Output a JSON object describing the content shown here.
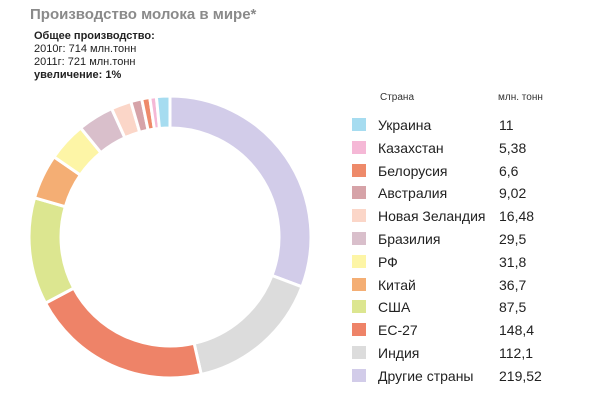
{
  "title": "Производство молока в мире*",
  "summary": {
    "heading": "Общее производство:",
    "line_2010": "2010г: 714 млн.тонн",
    "line_2011": "2011г: 721 млн.тонн",
    "increase": "увеличение: 1%"
  },
  "legend_header": {
    "country": "Страна",
    "unit": "млн. тонн"
  },
  "chart_data": {
    "type": "pie",
    "title": "Производство молока в мире*",
    "legend_placement": "right",
    "categories": [
      "Украина",
      "Казахстан",
      "Белорусия",
      "Австралия",
      "Новая Зеландия",
      "Бразилия",
      "РФ",
      "Китай",
      "США",
      "ЕС-27",
      "Индия",
      "Другие страны"
    ],
    "value_labels": [
      "11",
      "5,38",
      "6,6",
      "9,02",
      "16,48",
      "29,5",
      "31,8",
      "36,7",
      "87,5",
      "148,4",
      "112,1",
      "219,52"
    ],
    "values": [
      11,
      5.38,
      6.6,
      9.02,
      16.48,
      29.5,
      31.8,
      36.7,
      87.5,
      148.4,
      112.1,
      219.52
    ],
    "colors": [
      "#a6dcf0",
      "#f5b8d6",
      "#ee8a6a",
      "#d6a3a8",
      "#fbd6c8",
      "#d9bfcb",
      "#fdf5a6",
      "#f4ae74",
      "#dce690",
      "#ee8368",
      "#dcdcdc",
      "#d2cce9"
    ],
    "order_clockwise_from_top": [
      "Другие страны",
      "Индия",
      "ЕС-27",
      "США",
      "Китай",
      "РФ",
      "Бразилия",
      "Новая Зеландия",
      "Австралия",
      "Белорусия",
      "Казахстан",
      "Украина"
    ]
  }
}
